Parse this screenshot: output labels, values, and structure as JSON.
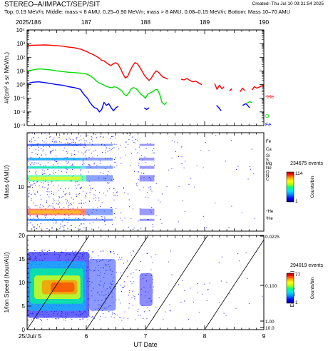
{
  "header": {
    "title": "STEREO–A/IMPACT/SEP/SIT",
    "subtitle": "Top: 0.19 MeV/n; Middle: mass < 8 AMU, 0.25–0.90 MeV/n; mass > 8 AMU, 0.08–0.15 MeV/n; Bottom: Mass 10–70 AMU",
    "created": "Created–Thu Jul 10 09:31:54 2025"
  },
  "colors": {
    "he": "#ff0000",
    "o": "#00dd00",
    "fe": "#0000ff",
    "scatter": "#1a1aff",
    "colorbar": [
      "#08008a",
      "#0000ff",
      "#0090ff",
      "#00e0ff",
      "#00ff80",
      "#c0ff00",
      "#ffff00",
      "#ff9000",
      "#ff0000",
      "#a00000"
    ]
  },
  "chart_data": [
    {
      "type": "line",
      "name": "intensity",
      "top_axis_label": "2025/186",
      "top_ticks": [
        "187",
        "188",
        "189",
        "190"
      ],
      "ylabel": "#/(cm² s sr MeV/n.)",
      "yscale": "log",
      "ylim": [
        0.001,
        10000
      ],
      "ytick_labels": [
        "10⁻³",
        "10⁻²",
        "10⁻¹",
        "10⁰",
        "10¹",
        "10²",
        "10³",
        "10⁴"
      ],
      "xlim": [
        5,
        9
      ],
      "series": [
        {
          "name": "⁴He",
          "color": "#ff0000",
          "segments": [
            [
              [
                5.0,
                700
              ],
              [
                5.08,
                750
              ],
              [
                5.2,
                780
              ],
              [
                5.3,
                800
              ],
              [
                5.4,
                760
              ],
              [
                5.5,
                720
              ],
              [
                5.6,
                650
              ],
              [
                5.7,
                560
              ],
              [
                5.8,
                500
              ],
              [
                5.86,
                430
              ],
              [
                5.92,
                380
              ],
              [
                5.97,
                300
              ],
              [
                6.02,
                250
              ],
              [
                6.06,
                200
              ],
              [
                6.1,
                170
              ],
              [
                6.14,
                140
              ],
              [
                6.18,
                110
              ],
              [
                6.22,
                85
              ],
              [
                6.26,
                60
              ],
              [
                6.3,
                55
              ],
              [
                6.34,
                40
              ],
              [
                6.38,
                30
              ],
              [
                6.42,
                25
              ],
              [
                6.46,
                35
              ],
              [
                6.5,
                40
              ],
              [
                6.54,
                30
              ],
              [
                6.58,
                15
              ],
              [
                6.62,
                6
              ],
              [
                6.66,
                3
              ],
              [
                6.7,
                4
              ],
              [
                6.74,
                10
              ],
              [
                6.78,
                22
              ],
              [
                6.82,
                40
              ],
              [
                6.86,
                35
              ],
              [
                6.9,
                20
              ],
              [
                6.94,
                10
              ],
              [
                6.98,
                5
              ],
              [
                7.02,
                3
              ],
              [
                7.06,
                2
              ],
              [
                7.1,
                3
              ],
              [
                7.14,
                6
              ],
              [
                7.18,
                10
              ],
              [
                7.22,
                8
              ],
              [
                7.26,
                5
              ],
              [
                7.3,
                3.5
              ],
              [
                7.34,
                3
              ],
              [
                7.38,
                2.5
              ]
            ],
            [
              [
                7.6,
                2.5
              ],
              [
                7.65,
                2.2
              ],
              [
                7.7,
                2.8
              ],
              [
                7.75,
                2.0
              ],
              [
                7.8,
                1.6
              ],
              [
                7.85,
                1.8
              ],
              [
                7.9,
                1.3
              ],
              [
                7.95,
                1.0
              ]
            ],
            [
              [
                8.17,
                1.2
              ],
              [
                8.21,
                0.45
              ],
              [
                8.25,
                0.9
              ],
              [
                8.29,
                0.5
              ],
              [
                8.33,
                0.7
              ]
            ],
            [
              [
                8.42,
                0.35
              ],
              [
                8.46,
                0.5
              ]
            ],
            [
              [
                8.6,
                0.3
              ],
              [
                8.64,
                0.55
              ],
              [
                8.68,
                0.35
              ]
            ],
            [
              [
                8.8,
                0.4
              ],
              [
                8.84,
                0.7
              ],
              [
                8.88,
                0.55
              ],
              [
                8.92,
                0.65
              ],
              [
                8.96,
                0.8
              ],
              [
                9.0,
                0.9
              ]
            ]
          ]
        },
        {
          "name": "O",
          "color": "#00dd00",
          "segments": [
            [
              [
                5.0,
                10
              ],
              [
                5.1,
                12
              ],
              [
                5.2,
                14
              ],
              [
                5.3,
                13
              ],
              [
                5.4,
                12
              ],
              [
                5.5,
                10
              ],
              [
                5.6,
                9
              ],
              [
                5.7,
                8
              ],
              [
                5.8,
                7.5
              ],
              [
                5.9,
                7
              ],
              [
                6.0,
                6
              ],
              [
                6.04,
                5
              ],
              [
                6.08,
                4
              ],
              [
                6.12,
                3
              ],
              [
                6.16,
                2
              ],
              [
                6.2,
                1.5
              ],
              [
                6.24,
                1.2
              ],
              [
                6.28,
                1
              ],
              [
                6.32,
                0.8
              ],
              [
                6.36,
                0.7
              ],
              [
                6.4,
                0.6
              ],
              [
                6.44,
                0.6
              ],
              [
                6.48,
                0.7
              ],
              [
                6.52,
                0.6
              ],
              [
                6.56,
                0.45
              ],
              [
                6.6,
                0.35
              ],
              [
                6.64,
                0.2
              ],
              [
                6.68,
                0.15
              ],
              [
                6.72,
                0.25
              ],
              [
                6.76,
                0.5
              ],
              [
                6.8,
                0.6
              ],
              [
                6.84,
                0.5
              ],
              [
                6.88,
                0.35
              ],
              [
                6.92,
                0.2
              ],
              [
                6.96,
                0.15
              ],
              [
                7.0,
                0.1
              ],
              [
                7.04,
                0.2
              ],
              [
                7.08,
                0.25
              ],
              [
                7.12,
                0.3
              ],
              [
                7.16,
                0.4
              ],
              [
                7.2,
                0.45
              ],
              [
                7.24,
                0.2
              ],
              [
                7.28,
                0.05
              ],
              [
                7.32,
                0.035
              ],
              [
                7.36,
                0.05
              ]
            ],
            [
              [
                8.72,
                0.045
              ],
              [
                8.76,
                0.055
              ],
              [
                8.8,
                0.05
              ]
            ]
          ]
        },
        {
          "name": "Fe",
          "color": "#0000ff",
          "segments": [
            [
              [
                5.0,
                1.2
              ],
              [
                5.1,
                1.5
              ],
              [
                5.2,
                1.6
              ],
              [
                5.3,
                1.4
              ],
              [
                5.4,
                1.2
              ],
              [
                5.5,
                1.0
              ],
              [
                5.6,
                0.9
              ],
              [
                5.7,
                0.7
              ],
              [
                5.8,
                0.6
              ],
              [
                5.9,
                0.45
              ],
              [
                5.94,
                0.25
              ],
              [
                5.98,
                0.15
              ],
              [
                6.02,
                0.1
              ],
              [
                6.06,
                0.05
              ],
              [
                6.1,
                0.03
              ],
              [
                6.14,
                0.02
              ],
              [
                6.18,
                0.018
              ],
              [
                6.22,
                0.01
              ],
              [
                6.26,
                0.015
              ],
              [
                6.3,
                0.05
              ],
              [
                6.34,
                0.03
              ],
              [
                6.38,
                0.04
              ],
              [
                6.42,
                0.02
              ],
              [
                6.46,
                0.012
              ],
              [
                6.5,
                0.02
              ],
              [
                6.54,
                0.025
              ]
            ],
            [
              [
                6.98,
                0.02
              ],
              [
                7.02,
                0.015
              ],
              [
                7.06,
                0.02
              ]
            ],
            [
              [
                8.2,
                0.03
              ],
              [
                8.24,
                0.02
              ],
              [
                8.28,
                0.012
              ]
            ],
            [
              [
                8.64,
                0.03
              ],
              [
                8.7,
                0.04
              ],
              [
                8.76,
                0.02
              ]
            ]
          ]
        }
      ],
      "legend": [
        "⁴He",
        "O",
        "Fe"
      ]
    },
    {
      "type": "heatmap",
      "name": "mass",
      "ylabel": "Mass (AMU)",
      "yscale": "log",
      "ylim": [
        2,
        70
      ],
      "ytick_label": "10",
      "species_labels": [
        "Fe",
        "Ca",
        "Si",
        "S",
        "Mg",
        "Ne",
        "O",
        "N",
        "C",
        "⁴He",
        "³He"
      ],
      "colorbar": {
        "title": "234675 events",
        "max_label": "114",
        "min_label": "1",
        "axis_label": "Counts/bin"
      }
    },
    {
      "type": "heatmap",
      "name": "velocity",
      "ylabel": "1/Ion Speed (hour/AU)",
      "ylim": [
        0,
        20
      ],
      "ytick_labels": [
        "0",
        "5",
        "10",
        "15",
        "20"
      ],
      "xlabel": "UT Date",
      "xtick_labels": [
        "25/Jul/ 5",
        "6",
        "7",
        "8",
        "9"
      ],
      "right_axis": {
        "label": "Energy (MeV/n.)",
        "tick_labels": [
          "0.0225",
          "0.100",
          "1.00",
          "10.0"
        ]
      },
      "colorbar": {
        "title": "294019 events",
        "max_label": "77",
        "min_label": "1",
        "axis_label": "Counts/bin"
      }
    }
  ]
}
